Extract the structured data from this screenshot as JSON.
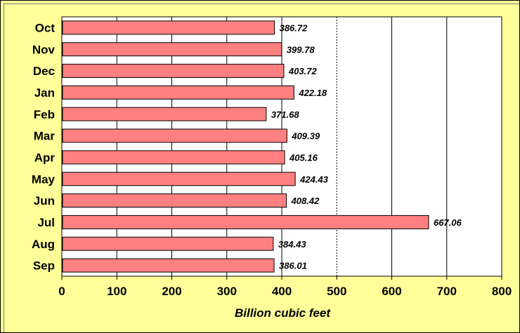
{
  "chart_data": {
    "type": "bar",
    "orientation": "horizontal",
    "categories": [
      "Oct",
      "Nov",
      "Dec",
      "Jan",
      "Feb",
      "Mar",
      "Apr",
      "May",
      "Jun",
      "Jul",
      "Aug",
      "Sep"
    ],
    "values": [
      386.72,
      399.78,
      403.72,
      422.18,
      371.68,
      409.39,
      405.16,
      424.43,
      408.42,
      667.06,
      384.43,
      386.01
    ],
    "data_labels": [
      "386.72",
      "399.78",
      "403.72",
      "422.18",
      "371.68",
      "409.39",
      "405.16",
      "424.43",
      "408.42",
      "667.06",
      "384.43",
      "386.01"
    ],
    "xlabel": "Billion cubic feet",
    "ylabel": "",
    "xlim": [
      0,
      800
    ],
    "xticks": [
      "0",
      "100",
      "200",
      "300",
      "400",
      "500",
      "600",
      "700",
      "800"
    ],
    "grid": "vertical",
    "colors": {
      "bar_fill": "#ff8080",
      "bar_stroke": "#000000",
      "plot_background": "#ffffff",
      "frame_background": "#ffff99"
    }
  }
}
